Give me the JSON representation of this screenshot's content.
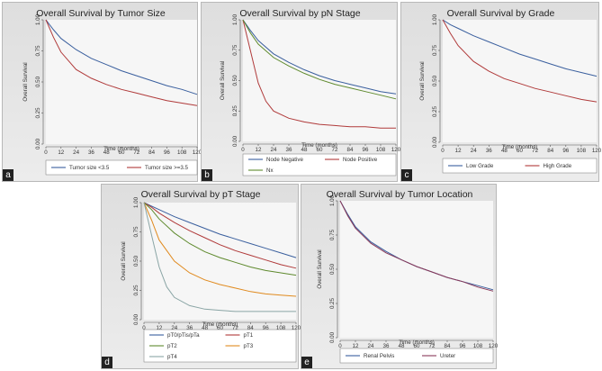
{
  "chart_data": [
    {
      "panel": "a",
      "type": "line",
      "title": "Overall Survival by Tumor Size",
      "xlabel": "Time (months)",
      "ylabel": "Overall Survival",
      "x_ticks": [
        0,
        12,
        24,
        36,
        48,
        60,
        72,
        84,
        96,
        108,
        120
      ],
      "y_ticks": [
        "0.00",
        "0.25",
        "0.50",
        "0.75",
        "1.00"
      ],
      "xlim": [
        0,
        120
      ],
      "ylim": [
        0,
        1
      ],
      "legend_columns": 2,
      "series": [
        {
          "name": "Tumor size <3.5",
          "color": "#3a5f9e",
          "x": [
            0,
            6,
            12,
            24,
            36,
            48,
            60,
            72,
            84,
            96,
            108,
            120
          ],
          "y": [
            1.0,
            0.92,
            0.85,
            0.76,
            0.69,
            0.64,
            0.59,
            0.55,
            0.51,
            0.47,
            0.44,
            0.4
          ]
        },
        {
          "name": "Tumor size >=3.5",
          "color": "#b03a3a",
          "x": [
            0,
            6,
            12,
            24,
            36,
            48,
            60,
            72,
            84,
            96,
            108,
            120
          ],
          "y": [
            1.0,
            0.86,
            0.74,
            0.6,
            0.53,
            0.48,
            0.44,
            0.41,
            0.38,
            0.35,
            0.33,
            0.31
          ]
        }
      ]
    },
    {
      "panel": "b",
      "type": "line",
      "title": "Overall Survival by pN Stage",
      "xlabel": "Time (months)",
      "ylabel": "Overall Survival",
      "x_ticks": [
        0,
        12,
        24,
        36,
        48,
        60,
        72,
        84,
        96,
        108,
        120
      ],
      "y_ticks": [
        "0.00",
        "0.25",
        "0.50",
        "0.75",
        "1.00"
      ],
      "xlim": [
        0,
        120
      ],
      "ylim": [
        0,
        1
      ],
      "legend_columns": 2,
      "series": [
        {
          "name": "Node Negative",
          "color": "#3a5f9e",
          "x": [
            0,
            6,
            12,
            24,
            36,
            48,
            60,
            72,
            84,
            96,
            108,
            120
          ],
          "y": [
            1.0,
            0.91,
            0.83,
            0.72,
            0.65,
            0.59,
            0.54,
            0.5,
            0.47,
            0.44,
            0.41,
            0.39
          ]
        },
        {
          "name": "Node Positive",
          "color": "#b03a3a",
          "x": [
            0,
            6,
            12,
            18,
            24,
            36,
            48,
            60,
            72,
            84,
            96,
            108,
            120
          ],
          "y": [
            1.0,
            0.74,
            0.48,
            0.33,
            0.25,
            0.19,
            0.16,
            0.14,
            0.13,
            0.12,
            0.12,
            0.11,
            0.11
          ]
        },
        {
          "name": "Nx",
          "color": "#5f8a2e",
          "x": [
            0,
            6,
            12,
            24,
            36,
            48,
            60,
            72,
            84,
            96,
            108,
            120
          ],
          "y": [
            1.0,
            0.89,
            0.8,
            0.69,
            0.62,
            0.56,
            0.51,
            0.47,
            0.44,
            0.41,
            0.38,
            0.35
          ]
        }
      ]
    },
    {
      "panel": "c",
      "type": "line",
      "title": "Overall Survival by Grade",
      "xlabel": "Time (months)",
      "ylabel": "Overall Survival",
      "x_ticks": [
        0,
        12,
        24,
        36,
        48,
        60,
        72,
        84,
        96,
        108,
        120
      ],
      "y_ticks": [
        "0.00",
        "0.25",
        "0.50",
        "0.75",
        "1.00"
      ],
      "xlim": [
        0,
        120
      ],
      "ylim": [
        0,
        1
      ],
      "legend_columns": 2,
      "series": [
        {
          "name": "Low Grade",
          "color": "#3a5f9e",
          "x": [
            0,
            6,
            12,
            24,
            36,
            48,
            60,
            72,
            84,
            96,
            108,
            120
          ],
          "y": [
            1.0,
            0.96,
            0.93,
            0.87,
            0.82,
            0.77,
            0.72,
            0.68,
            0.64,
            0.6,
            0.57,
            0.54
          ]
        },
        {
          "name": "High Grade",
          "color": "#b03a3a",
          "x": [
            0,
            6,
            12,
            24,
            36,
            48,
            60,
            72,
            84,
            96,
            108,
            120
          ],
          "y": [
            1.0,
            0.89,
            0.79,
            0.66,
            0.58,
            0.52,
            0.48,
            0.44,
            0.41,
            0.38,
            0.35,
            0.33
          ]
        }
      ]
    },
    {
      "panel": "d",
      "type": "line",
      "title": "Overall Survival by pT Stage",
      "xlabel": "Time (months)",
      "ylabel": "Overall Survival",
      "x_ticks": [
        0,
        12,
        24,
        36,
        48,
        60,
        72,
        84,
        96,
        108,
        120
      ],
      "y_ticks": [
        "0.00",
        "0.25",
        "0.50",
        "0.75",
        "1.00"
      ],
      "xlim": [
        0,
        120
      ],
      "ylim": [
        0,
        1
      ],
      "legend_columns": 2,
      "series": [
        {
          "name": "pT0/pTis/pTa",
          "color": "#3a5f9e",
          "x": [
            0,
            6,
            12,
            24,
            36,
            48,
            60,
            72,
            84,
            96,
            108,
            120
          ],
          "y": [
            1.0,
            0.97,
            0.94,
            0.88,
            0.83,
            0.78,
            0.73,
            0.69,
            0.65,
            0.61,
            0.57,
            0.53
          ]
        },
        {
          "name": "pT1",
          "color": "#b03a3a",
          "x": [
            0,
            6,
            12,
            24,
            36,
            48,
            60,
            72,
            84,
            96,
            108,
            120
          ],
          "y": [
            1.0,
            0.96,
            0.91,
            0.83,
            0.76,
            0.7,
            0.64,
            0.59,
            0.55,
            0.51,
            0.47,
            0.44
          ]
        },
        {
          "name": "pT2",
          "color": "#5f8a2e",
          "x": [
            0,
            6,
            12,
            24,
            36,
            48,
            60,
            72,
            84,
            96,
            108,
            120
          ],
          "y": [
            1.0,
            0.94,
            0.86,
            0.74,
            0.65,
            0.58,
            0.53,
            0.49,
            0.45,
            0.42,
            0.4,
            0.38
          ]
        },
        {
          "name": "pT3",
          "color": "#e08a1e",
          "x": [
            0,
            6,
            12,
            24,
            36,
            48,
            60,
            72,
            84,
            96,
            108,
            120
          ],
          "y": [
            1.0,
            0.85,
            0.68,
            0.5,
            0.4,
            0.34,
            0.3,
            0.27,
            0.24,
            0.22,
            0.21,
            0.2
          ]
        },
        {
          "name": "pT4",
          "color": "#8aa5a5",
          "x": [
            0,
            6,
            12,
            18,
            24,
            36,
            48,
            60,
            72,
            84,
            96,
            108,
            120
          ],
          "y": [
            1.0,
            0.72,
            0.45,
            0.28,
            0.19,
            0.12,
            0.09,
            0.08,
            0.07,
            0.07,
            0.07,
            0.07,
            0.07
          ]
        }
      ]
    },
    {
      "panel": "e",
      "type": "line",
      "title": "Overall Survival by Tumor Location",
      "xlabel": "Time (months)",
      "ylabel": "Overall Survival",
      "x_ticks": [
        0,
        12,
        24,
        36,
        48,
        60,
        72,
        84,
        96,
        108,
        120
      ],
      "y_ticks": [
        "0.00",
        "0.25",
        "0.50",
        "0.75",
        "1.00"
      ],
      "xlim": [
        0,
        120
      ],
      "ylim": [
        0,
        1
      ],
      "legend_columns": 2,
      "series": [
        {
          "name": "Renal Pelvis",
          "color": "#3a5f9e",
          "x": [
            0,
            6,
            12,
            24,
            36,
            48,
            60,
            72,
            84,
            96,
            108,
            120
          ],
          "y": [
            1.0,
            0.9,
            0.81,
            0.7,
            0.63,
            0.57,
            0.52,
            0.48,
            0.44,
            0.41,
            0.38,
            0.35
          ]
        },
        {
          "name": "Ureter",
          "color": "#8a3a5a",
          "x": [
            0,
            6,
            12,
            24,
            36,
            48,
            60,
            72,
            84,
            96,
            108,
            120
          ],
          "y": [
            1.0,
            0.89,
            0.8,
            0.69,
            0.62,
            0.57,
            0.52,
            0.48,
            0.44,
            0.41,
            0.37,
            0.34
          ]
        }
      ]
    }
  ]
}
